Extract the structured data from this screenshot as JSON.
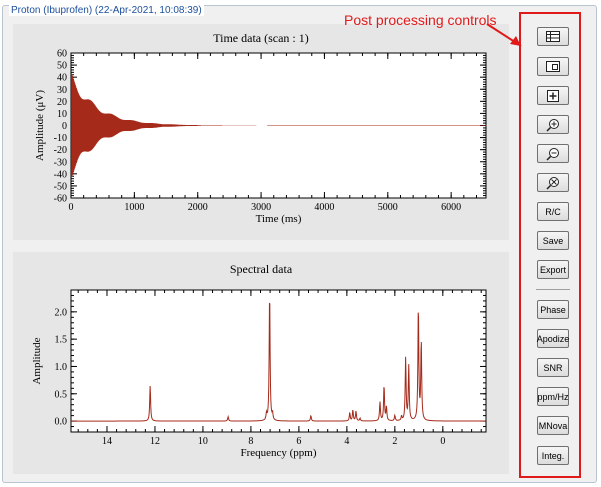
{
  "window": {
    "group_title": "Proton (Ibuprofen) (22-Apr-2021, 10:08:39)"
  },
  "annotation": {
    "text": "Post processing controls",
    "color": "#e01a1a"
  },
  "colors": {
    "trace": "#a52a1a",
    "highlight": "#e01a1a"
  },
  "toolbar": {
    "icon_buttons": [
      {
        "name": "table-icon"
      },
      {
        "name": "zoom-window-icon"
      },
      {
        "name": "fit-all-icon"
      },
      {
        "name": "zoom-in-icon"
      },
      {
        "name": "zoom-out-icon"
      },
      {
        "name": "zoom-reset-icon"
      }
    ],
    "labels": {
      "rc": "R/C",
      "save": "Save",
      "export": "Export",
      "phase": "Phase",
      "apodize": "Apodize",
      "snr": "SNR",
      "ppmhz": "ppm/Hz",
      "mnova": "MNova",
      "integ": "Integ."
    }
  },
  "chart_data": [
    {
      "type": "line",
      "title": "Time data (scan : 1)",
      "xlabel": "Time (ms)",
      "ylabel": "Amplitude (μV)",
      "xlim": [
        0,
        6550
      ],
      "ylim": [
        -60,
        60
      ],
      "xticks": [
        0,
        1000,
        2000,
        3000,
        4000,
        5000,
        6000
      ],
      "yticks": [
        -60,
        -50,
        -40,
        -30,
        -20,
        -10,
        0,
        10,
        20,
        30,
        40,
        50,
        60
      ],
      "series": [
        {
          "kind": "decaying-fid",
          "initial_amplitude": 44,
          "decay_constant_ms": 420,
          "envelope_visible_until_ms": 3100
        }
      ],
      "grid": false
    },
    {
      "type": "line",
      "title": "Spectral data",
      "xlabel": "Frequency (ppm)",
      "ylabel": "Amplitude",
      "xlim": [
        15.5,
        -1.8
      ],
      "ylim": [
        -0.2,
        2.4
      ],
      "xticks": [
        14,
        12,
        10,
        8,
        6,
        4,
        2,
        0
      ],
      "yticks": [
        0.0,
        0.5,
        1.0,
        1.5,
        2.0
      ],
      "series": [
        {
          "peaks": [
            {
              "ppm": 12.2,
              "height": 0.65
            },
            {
              "ppm": 8.95,
              "height": 0.08
            },
            {
              "ppm": 7.35,
              "height": 0.12
            },
            {
              "ppm": 7.22,
              "height": 2.38
            },
            {
              "ppm": 7.1,
              "height": 0.12
            },
            {
              "ppm": 5.5,
              "height": 0.1
            },
            {
              "ppm": 3.88,
              "height": 0.15
            },
            {
              "ppm": 3.75,
              "height": 0.2
            },
            {
              "ppm": 3.62,
              "height": 0.18
            },
            {
              "ppm": 3.45,
              "height": 0.05
            },
            {
              "ppm": 2.62,
              "height": 0.35
            },
            {
              "ppm": 2.45,
              "height": 0.65
            },
            {
              "ppm": 2.35,
              "height": 0.25
            },
            {
              "ppm": 2.0,
              "height": 0.1
            },
            {
              "ppm": 1.72,
              "height": 0.08
            },
            {
              "ppm": 1.55,
              "height": 1.15
            },
            {
              "ppm": 1.42,
              "height": 1.0
            },
            {
              "ppm": 1.02,
              "height": 2.1
            },
            {
              "ppm": 0.9,
              "height": 1.45
            }
          ]
        }
      ],
      "grid": false
    }
  ]
}
